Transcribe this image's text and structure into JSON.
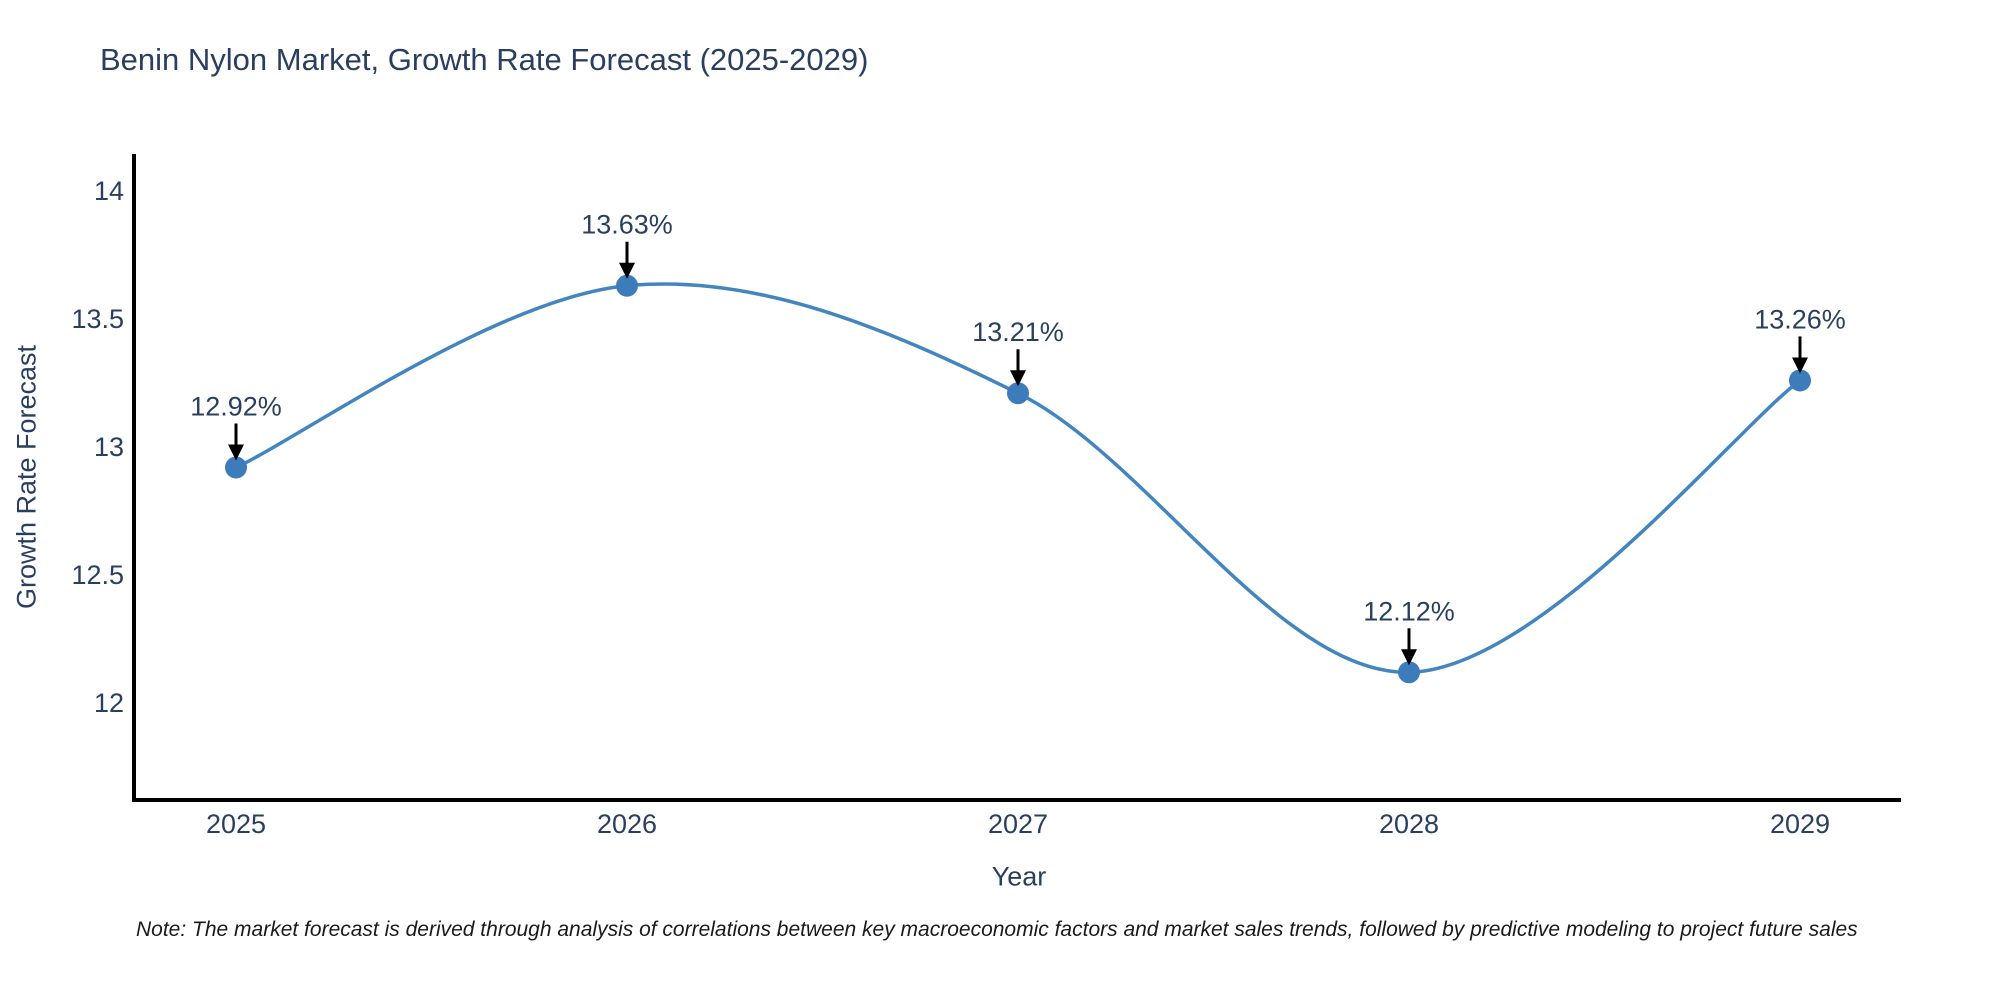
{
  "header": {
    "title": "Benin Nylon Market, Growth Rate Forecast (2025-2029)"
  },
  "footnote": {
    "text": "Note: The market forecast is derived through analysis of correlations between key macroeconomic factors and market sales trends, followed by predictive modeling to project future sales"
  },
  "chart_data": {
    "type": "line",
    "line_shape": "spline",
    "title": "Benin Nylon Market, Growth Rate Forecast (2025-2029)",
    "xlabel": "Year",
    "ylabel": "Growth Rate Forecast",
    "categories": [
      "2025",
      "2026",
      "2027",
      "2028",
      "2029"
    ],
    "values": [
      12.92,
      13.63,
      13.21,
      12.12,
      13.26
    ],
    "point_labels": [
      "12.92%",
      "13.63%",
      "13.21%",
      "12.12%",
      "13.26%"
    ],
    "ytick_values": [
      12,
      12.5,
      13,
      13.5,
      14
    ],
    "ytick_labels": [
      "12",
      "12.5",
      "13",
      "13.5",
      "14"
    ],
    "ylim": [
      11.62,
      14.14
    ],
    "grid": false,
    "legend": false,
    "annotations_have_arrows": true,
    "colors": {
      "line": "#4385bf",
      "marker": "#3d7cba",
      "arrow": "#000000",
      "axis": "#000000",
      "text": "#2a3f5f"
    }
  }
}
